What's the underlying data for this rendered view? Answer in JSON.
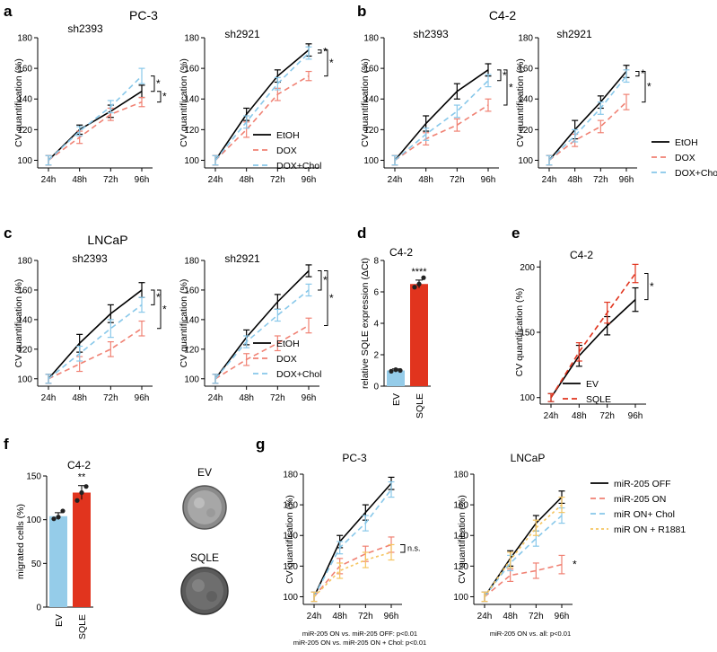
{
  "figure": {
    "panel_labels": [
      "a",
      "b",
      "c",
      "d",
      "e",
      "f",
      "g"
    ],
    "group_titles": {
      "a": "PC-3",
      "b": "C4-2",
      "c": "LNCaP"
    }
  },
  "colors": {
    "black": "#000000",
    "red": "#f08173",
    "blue": "#88c8ea",
    "orange": "#f5c560",
    "sqle_red": "#e1341e",
    "bar_blue": "#95cce9",
    "bar_red": "#e1341e"
  },
  "images": {
    "ev_label": "EV",
    "sqle_label": "SQLE"
  },
  "chart_data": [
    {
      "id": "a1",
      "type": "line",
      "title": "sh2393",
      "ylabel": "CV quantification (%)",
      "ylim": [
        95,
        180
      ],
      "yticks": [
        100,
        120,
        140,
        160,
        180
      ],
      "categories": [
        "24h",
        "48h",
        "72h",
        "96h"
      ],
      "series": [
        {
          "name": "EtOH",
          "color": "black",
          "values": [
            100,
            120,
            132,
            145
          ],
          "err": [
            3,
            3,
            4,
            4
          ]
        },
        {
          "name": "DOX",
          "color": "red",
          "values": [
            100,
            115,
            130,
            138
          ],
          "err": [
            3,
            4,
            4,
            3
          ]
        },
        {
          "name": "DOX+Chol",
          "color": "blue",
          "values": [
            100,
            119,
            135,
            155
          ],
          "err": [
            3,
            3,
            4,
            5
          ]
        }
      ],
      "annotations": [
        "*",
        "*"
      ]
    },
    {
      "id": "a2",
      "type": "line",
      "title": "sh2921",
      "ylabel": "CV quantification (%)",
      "ylim": [
        95,
        180
      ],
      "yticks": [
        100,
        120,
        140,
        160,
        180
      ],
      "categories": [
        "24h",
        "48h",
        "72h",
        "96h"
      ],
      "series": [
        {
          "name": "EtOH",
          "color": "black",
          "values": [
            100,
            130,
            155,
            172
          ],
          "err": [
            3,
            4,
            4,
            4
          ]
        },
        {
          "name": "DOX",
          "color": "red",
          "values": [
            100,
            120,
            143,
            155
          ],
          "err": [
            3,
            5,
            4,
            3
          ]
        },
        {
          "name": "DOX+Chol",
          "color": "blue",
          "values": [
            100,
            125,
            150,
            170
          ],
          "err": [
            3,
            4,
            4,
            4
          ]
        }
      ],
      "legend": [
        "EtOH",
        "DOX",
        "DOX+Chol"
      ],
      "annotations": [
        "*",
        "*"
      ]
    },
    {
      "id": "b1",
      "type": "line",
      "title": "sh2393",
      "ylabel": "CV quantification (%)",
      "ylim": [
        95,
        180
      ],
      "yticks": [
        100,
        120,
        140,
        160,
        180
      ],
      "categories": [
        "24h",
        "48h",
        "72h",
        "96h"
      ],
      "series": [
        {
          "name": "EtOH",
          "color": "black",
          "values": [
            100,
            124,
            145,
            159
          ],
          "err": [
            3,
            5,
            5,
            4
          ]
        },
        {
          "name": "DOX",
          "color": "red",
          "values": [
            100,
            114,
            123,
            136
          ],
          "err": [
            3,
            4,
            4,
            4
          ]
        },
        {
          "name": "DOX+Chol",
          "color": "blue",
          "values": [
            100,
            117,
            132,
            152
          ],
          "err": [
            3,
            4,
            4,
            4
          ]
        }
      ],
      "annotations": [
        "*",
        "*"
      ]
    },
    {
      "id": "b2",
      "type": "line",
      "title": "sh2921",
      "ylabel": "CV quantification (%)",
      "ylim": [
        95,
        180
      ],
      "yticks": [
        100,
        120,
        140,
        160,
        180
      ],
      "categories": [
        "24h",
        "48h",
        "72h",
        "96h"
      ],
      "series": [
        {
          "name": "EtOH",
          "color": "black",
          "values": [
            100,
            120,
            138,
            158
          ],
          "err": [
            3,
            6,
            4,
            4
          ]
        },
        {
          "name": "DOX",
          "color": "red",
          "values": [
            100,
            113,
            122,
            138
          ],
          "err": [
            3,
            4,
            4,
            5
          ]
        },
        {
          "name": "DOX+Chol",
          "color": "blue",
          "values": [
            100,
            116,
            134,
            155
          ],
          "err": [
            3,
            4,
            4,
            4
          ]
        }
      ],
      "legend": [
        "EtOH",
        "DOX",
        "DOX+Chol"
      ],
      "annotations": [
        "*",
        "*"
      ]
    },
    {
      "id": "c1",
      "type": "line",
      "title": "sh2393",
      "ylabel": "CV quantification (%)",
      "ylim": [
        95,
        180
      ],
      "yticks": [
        100,
        120,
        140,
        160,
        180
      ],
      "categories": [
        "24h",
        "48h",
        "72h",
        "96h"
      ],
      "series": [
        {
          "name": "EtOH",
          "color": "black",
          "values": [
            100,
            124,
            144,
            160
          ],
          "err": [
            3,
            6,
            6,
            5
          ]
        },
        {
          "name": "DOX",
          "color": "red",
          "values": [
            100,
            110,
            120,
            134
          ],
          "err": [
            3,
            5,
            5,
            5
          ]
        },
        {
          "name": "DOX+Chol",
          "color": "blue",
          "values": [
            100,
            117,
            134,
            150
          ],
          "err": [
            3,
            5,
            6,
            5
          ]
        }
      ],
      "annotations": [
        "*",
        "*"
      ]
    },
    {
      "id": "c2",
      "type": "line",
      "title": "sh2921",
      "ylabel": "CV quantification (%)",
      "ylim": [
        95,
        180
      ],
      "yticks": [
        100,
        120,
        140,
        160,
        180
      ],
      "categories": [
        "24h",
        "48h",
        "72h",
        "96h"
      ],
      "series": [
        {
          "name": "EtOH",
          "color": "black",
          "values": [
            100,
            128,
            152,
            173
          ],
          "err": [
            3,
            5,
            5,
            4
          ]
        },
        {
          "name": "DOX",
          "color": "red",
          "values": [
            100,
            113,
            124,
            136
          ],
          "err": [
            3,
            4,
            5,
            5
          ]
        },
        {
          "name": "DOX+Chol",
          "color": "blue",
          "values": [
            100,
            125,
            143,
            160
          ],
          "err": [
            3,
            4,
            4,
            4
          ]
        }
      ],
      "legend": [
        "EtOH",
        "DOX",
        "DOX+Chol"
      ],
      "annotations": [
        "*",
        "*"
      ]
    },
    {
      "id": "d",
      "type": "bar",
      "title": "C4-2",
      "ylabel": "relative SQLE expression (ΔCt)",
      "ylim": [
        0,
        8
      ],
      "yticks": [
        0,
        2,
        4,
        6,
        8
      ],
      "categories": [
        "EV",
        "SQLE"
      ],
      "values": [
        1.0,
        6.5
      ],
      "err": [
        0.1,
        0.25
      ],
      "points": [
        [
          0.95,
          1.05,
          1.0
        ],
        [
          6.3,
          6.5,
          6.9
        ]
      ],
      "bar_colors": [
        "bar_blue",
        "bar_red"
      ],
      "annotation": "****"
    },
    {
      "id": "e",
      "type": "line",
      "title": "C4-2",
      "ylabel": "CV quantification (%)",
      "ylim": [
        95,
        205
      ],
      "yticks": [
        100,
        150,
        200
      ],
      "categories": [
        "24h",
        "48h",
        "72h",
        "96h"
      ],
      "series": [
        {
          "name": "EV",
          "color": "black",
          "values": [
            100,
            132,
            155,
            175
          ],
          "err": [
            3,
            8,
            7,
            9
          ]
        },
        {
          "name": "SQLE",
          "color": "sqle_red",
          "values": [
            100,
            135,
            165,
            195
          ],
          "err": [
            3,
            7,
            8,
            7
          ]
        }
      ],
      "legend": [
        "EV",
        "SQLE"
      ],
      "annotations": [
        "*"
      ]
    },
    {
      "id": "f",
      "type": "bar",
      "title": "C4-2",
      "ylabel": "migrated cells (%)",
      "ylim": [
        0,
        150
      ],
      "yticks": [
        0,
        50,
        100,
        150
      ],
      "categories": [
        "EV",
        "SQLE"
      ],
      "values": [
        104,
        131
      ],
      "err": [
        4,
        8
      ],
      "points": [
        [
          101,
          103,
          110
        ],
        [
          122,
          131,
          138
        ]
      ],
      "bar_colors": [
        "bar_blue",
        "bar_red"
      ],
      "annotation": "**"
    },
    {
      "id": "g1",
      "type": "line",
      "title": "PC-3",
      "ylabel": "CV quantification (%)",
      "ylim": [
        95,
        180
      ],
      "yticks": [
        100,
        120,
        140,
        160,
        180
      ],
      "categories": [
        "24h",
        "48h",
        "72h",
        "96h"
      ],
      "series": [
        {
          "name": "miR-205 OFF",
          "color": "black",
          "values": [
            100,
            136,
            155,
            174
          ],
          "err": [
            3,
            4,
            5,
            4
          ]
        },
        {
          "name": "miR-205 ON",
          "color": "red",
          "values": [
            100,
            120,
            128,
            134
          ],
          "err": [
            3,
            5,
            5,
            5
          ]
        },
        {
          "name": "miR ON+ Chol",
          "color": "blue",
          "values": [
            100,
            132,
            148,
            170
          ],
          "err": [
            3,
            4,
            5,
            5
          ]
        },
        {
          "name": "miR ON + R1881",
          "color": "orange",
          "values": [
            100,
            117,
            124,
            129
          ],
          "err": [
            3,
            5,
            5,
            5
          ]
        }
      ],
      "annotations": [
        "n.s."
      ],
      "footnotes": [
        "miR-205 ON vs. miR-205 OFF: p<0.01",
        "miR-205 ON vs. miR-205 ON + Chol: p<0.01"
      ]
    },
    {
      "id": "g2",
      "type": "line",
      "title": "LNCaP",
      "ylabel": "CV quantification (%)",
      "ylim": [
        95,
        180
      ],
      "yticks": [
        100,
        120,
        140,
        160,
        180
      ],
      "categories": [
        "24h",
        "48h",
        "72h",
        "96h"
      ],
      "series": [
        {
          "name": "miR-205 OFF",
          "color": "black",
          "values": [
            100,
            125,
            148,
            165
          ],
          "err": [
            3,
            5,
            5,
            4
          ]
        },
        {
          "name": "miR-205 ON",
          "color": "red",
          "values": [
            100,
            114,
            117,
            121
          ],
          "err": [
            3,
            4,
            5,
            6
          ]
        },
        {
          "name": "miR ON+ Chol",
          "color": "blue",
          "values": [
            100,
            122,
            138,
            153
          ],
          "err": [
            3,
            5,
            5,
            5
          ]
        },
        {
          "name": "miR ON + R1881",
          "color": "orange",
          "values": [
            100,
            124,
            145,
            160
          ],
          "err": [
            3,
            5,
            5,
            5
          ]
        }
      ],
      "legend": [
        "miR-205 OFF",
        "miR-205 ON",
        "miR ON+ Chol",
        "miR ON + R1881"
      ],
      "annotations": [
        "*"
      ],
      "footnotes": [
        "miR-205 ON vs. all: p<0.01"
      ]
    }
  ]
}
